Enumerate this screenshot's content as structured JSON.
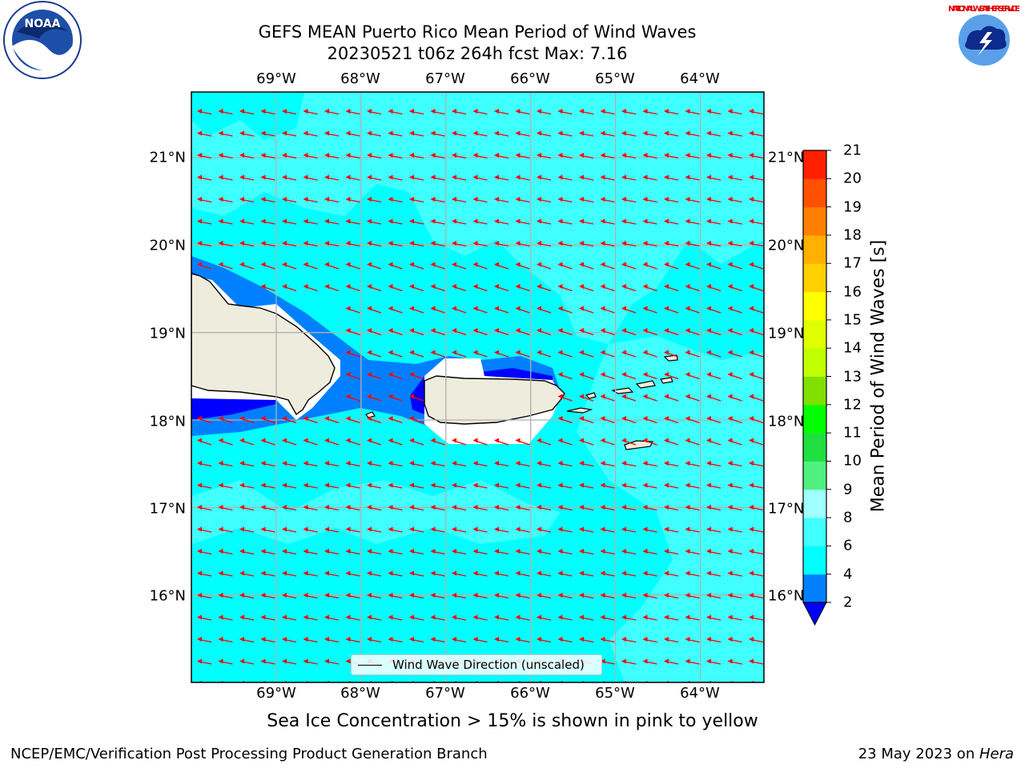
{
  "title": {
    "line1": "GEFS MEAN Puerto Rico Mean Period of Wind Waves",
    "line2": "20230521 t06z 264h fcst   Max: 7.16"
  },
  "axes": {
    "lon_labels": [
      "69°W",
      "68°W",
      "67°W",
      "66°W",
      "65°W",
      "64°W"
    ],
    "lon_values": [
      -69,
      -68,
      -67,
      -66,
      -65,
      -64
    ],
    "lat_labels": [
      "21°N",
      "20°N",
      "19°N",
      "18°N",
      "17°N",
      "16°N"
    ],
    "lat_values": [
      21,
      20,
      19,
      18,
      17,
      16
    ],
    "extent": {
      "lon_min": -70.0,
      "lon_max": -63.25,
      "lat_min": 15.0,
      "lat_max": 21.75
    }
  },
  "colorbar": {
    "label": "Mean Period of Wind Waves [s]",
    "ticks": [
      "2",
      "4",
      "6",
      "8",
      "9",
      "10",
      "11",
      "12",
      "13",
      "14",
      "15",
      "16",
      "17",
      "18",
      "19",
      "20",
      "21"
    ],
    "colors": [
      "#0000ff",
      "#0080ff",
      "#00ffff",
      "#40ffff",
      "#a0ffff",
      "#50f080",
      "#20e040",
      "#00ff00",
      "#80e000",
      "#c0ff00",
      "#e0ff00",
      "#ffff00",
      "#ffd000",
      "#ffb000",
      "#ff8000",
      "#ff5000",
      "#ff2000",
      "#ff0000"
    ],
    "extend": "min"
  },
  "legend": {
    "label": "Wind Wave Direction (unscaled)"
  },
  "note": "Sea Ice Concentration > 15% is shown in pink to yellow",
  "footer": {
    "left": "NCEP/EMC/Verification Post Processing Product Generation Branch",
    "right_prefix": "23 May 2023 on ",
    "right_machine": "Hera"
  },
  "logos": {
    "left": "NOAA",
    "right": "NATIONAL WEATHER SERVICE"
  },
  "colors": {
    "ocean_main": "#00ffff",
    "ocean_light": "#40ffff",
    "near_coast": "#0080ff",
    "shallow": "#0000ff",
    "land": "#eeecdc",
    "arrow": "#ff0000"
  }
}
